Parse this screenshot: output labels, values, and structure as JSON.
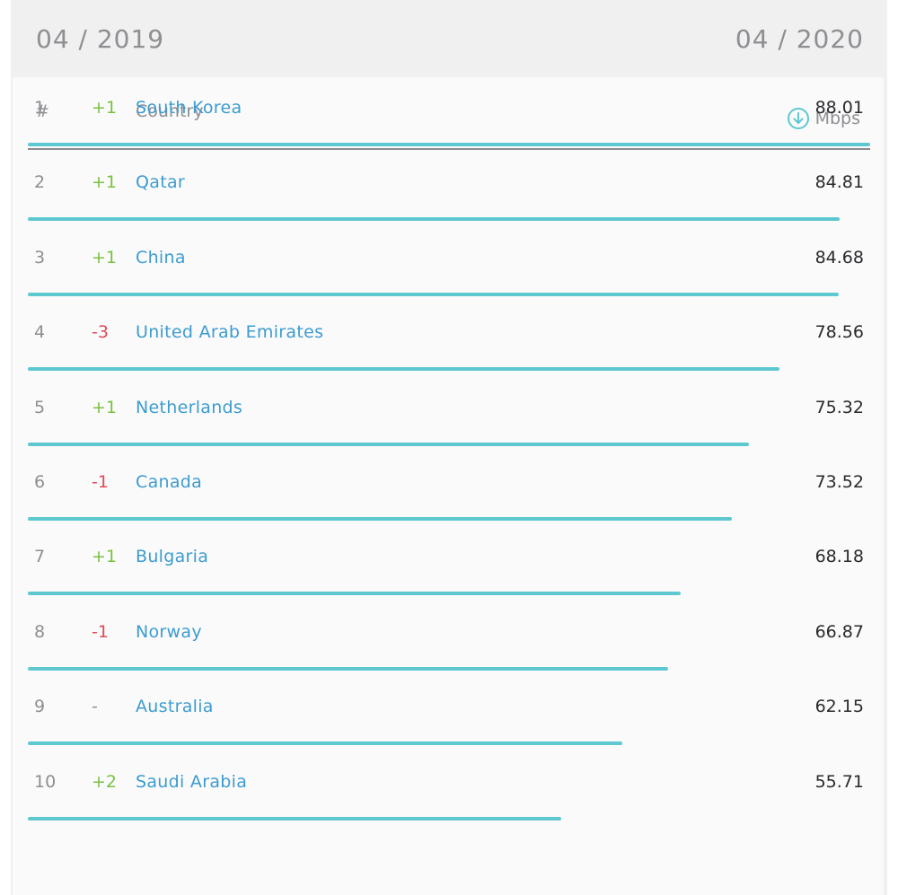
{
  "header": {
    "date_start": "04 / 2019",
    "date_end": "04 / 2020"
  },
  "table": {
    "columns": {
      "rank": "#",
      "country": "Country",
      "speed_unit": "Mbps"
    },
    "speed_icon": "download-arrow-circle-icon",
    "colors": {
      "link": "#3d9ccf",
      "up": "#7ac143",
      "down": "#e04a5a",
      "bar": "#5ec8d1"
    },
    "bar_max": 88.01,
    "rows": [
      {
        "rank": "1",
        "change": "+1",
        "direction": "up",
        "country": "South Korea",
        "speed": "88.01",
        "speed_num": 88.01
      },
      {
        "rank": "2",
        "change": "+1",
        "direction": "up",
        "country": "Qatar",
        "speed": "84.81",
        "speed_num": 84.81
      },
      {
        "rank": "3",
        "change": "+1",
        "direction": "up",
        "country": "China",
        "speed": "84.68",
        "speed_num": 84.68
      },
      {
        "rank": "4",
        "change": "-3",
        "direction": "down",
        "country": "United Arab Emirates",
        "speed": "78.56",
        "speed_num": 78.56
      },
      {
        "rank": "5",
        "change": "+1",
        "direction": "up",
        "country": "Netherlands",
        "speed": "75.32",
        "speed_num": 75.32
      },
      {
        "rank": "6",
        "change": "-1",
        "direction": "down",
        "country": "Canada",
        "speed": "73.52",
        "speed_num": 73.52
      },
      {
        "rank": "7",
        "change": "+1",
        "direction": "up",
        "country": "Bulgaria",
        "speed": "68.18",
        "speed_num": 68.18
      },
      {
        "rank": "8",
        "change": "-1",
        "direction": "down",
        "country": "Norway",
        "speed": "66.87",
        "speed_num": 66.87
      },
      {
        "rank": "9",
        "change": "-",
        "direction": "same",
        "country": "Australia",
        "speed": "62.15",
        "speed_num": 62.15
      },
      {
        "rank": "10",
        "change": "+2",
        "direction": "up",
        "country": "Saudi Arabia",
        "speed": "55.71",
        "speed_num": 55.71
      }
    ]
  }
}
